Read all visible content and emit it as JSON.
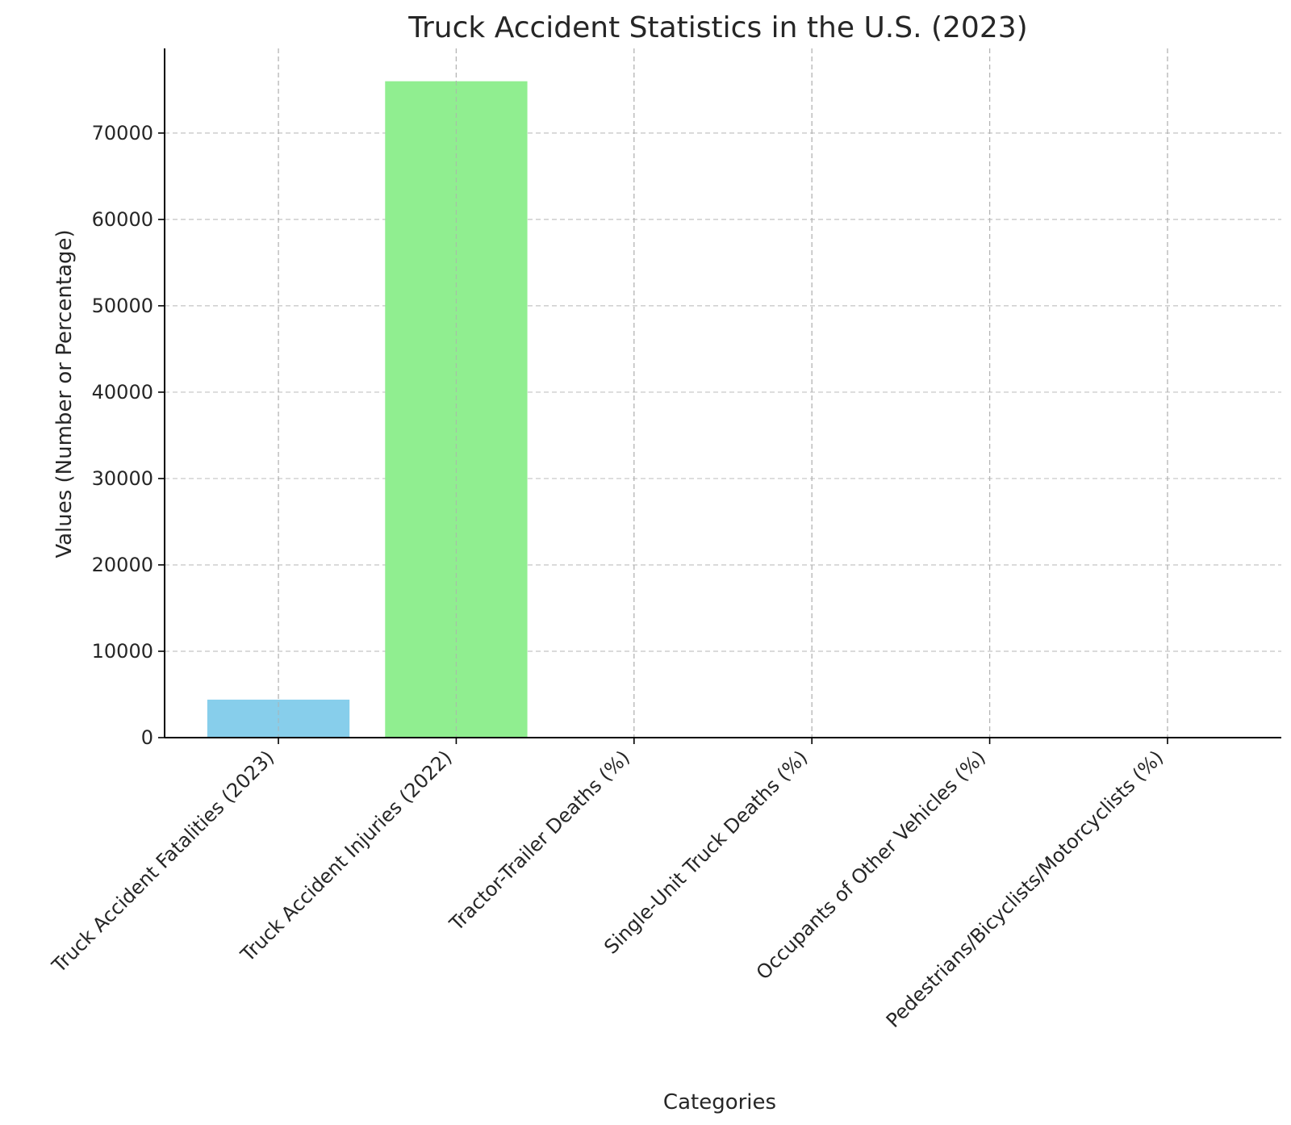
{
  "chart_data": {
    "type": "bar",
    "title": "Truck Accident Statistics in the U.S. (2023)",
    "xlabel": "Categories",
    "ylabel": "Values (Number or Percentage)",
    "categories": [
      "Truck Accident Fatalities (2023)",
      "Truck Accident Injuries (2022)",
      "Tractor-Trailer Deaths (%)",
      "Single-Unit Truck Deaths (%)",
      "Occupants of Other Vehicles (%)",
      "Pedestrians/Bicyclists/Motorcyclists (%)"
    ],
    "values": [
      4400,
      76000,
      70,
      25,
      69,
      11
    ],
    "colors": [
      "#87ceeb",
      "#90ee90",
      "#f08080",
      "#ffb6c1",
      "#dda0dd",
      "#ffd700"
    ],
    "ylim": [
      0,
      79800
    ],
    "yticks": [
      0,
      10000,
      20000,
      30000,
      40000,
      50000,
      60000,
      70000
    ],
    "ytick_labels": [
      "0",
      "10000",
      "20000",
      "30000",
      "40000",
      "50000",
      "60000",
      "70000"
    ],
    "grid": true
  }
}
